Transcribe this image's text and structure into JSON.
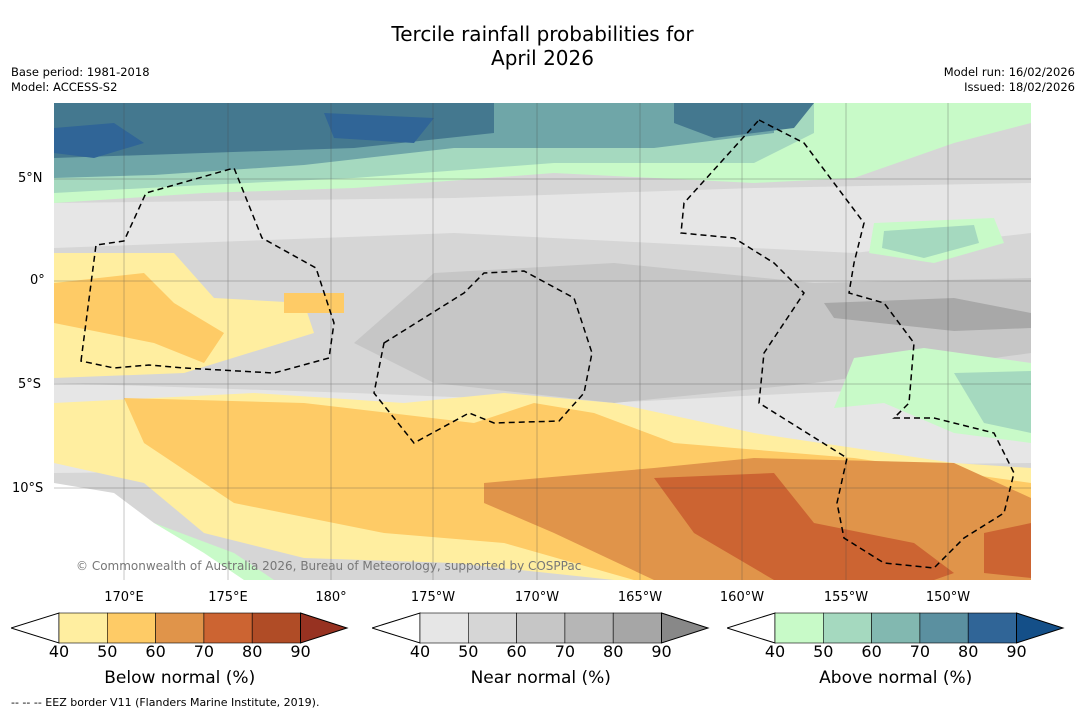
{
  "title_line1": "Tercile rainfall probabilities for",
  "title_line2": "April 2026",
  "base_period": "Base period: 1981-2018",
  "model": "Model: ACCESS-S2",
  "model_run": "Model run: 16/02/2026",
  "issued": "Issued: 18/02/2026",
  "lat_labels": [
    "5°N",
    "0°",
    "5°S",
    "10°S"
  ],
  "lon_labels": [
    "170°E",
    "175°E",
    "180°",
    "175°W",
    "170°W",
    "165°W",
    "160°W",
    "155°W",
    "150°W"
  ],
  "copyright": "© Commonwealth of Australia 2026, Bureau of Meteorology, supported by COSPPac",
  "colorbars": [
    {
      "label": "Below normal (%)",
      "ticks": [
        "40",
        "50",
        "60",
        "70",
        "80",
        "90"
      ],
      "colors": [
        "#ffeea0",
        "#fecb66",
        "#e0944a",
        "#cc6432",
        "#b04c26",
        "#973221"
      ]
    },
    {
      "label": "Near normal (%)",
      "ticks": [
        "40",
        "50",
        "60",
        "70",
        "80",
        "90"
      ],
      "colors": [
        "#e6e6e6",
        "#d6d6d6",
        "#c6c6c6",
        "#b6b6b6",
        "#a6a6a6",
        "#888888"
      ]
    },
    {
      "label": "Above normal (%)",
      "ticks": [
        "40",
        "50",
        "60",
        "70",
        "80",
        "90"
      ],
      "colors": [
        "#c8fac8",
        "#a5d9bf",
        "#82b8b0",
        "#5b90a0",
        "#306597",
        "#144f88"
      ]
    }
  ],
  "footnote": "--  --  -- EEZ border V11 (Flanders Marine Institute, 2019)."
}
